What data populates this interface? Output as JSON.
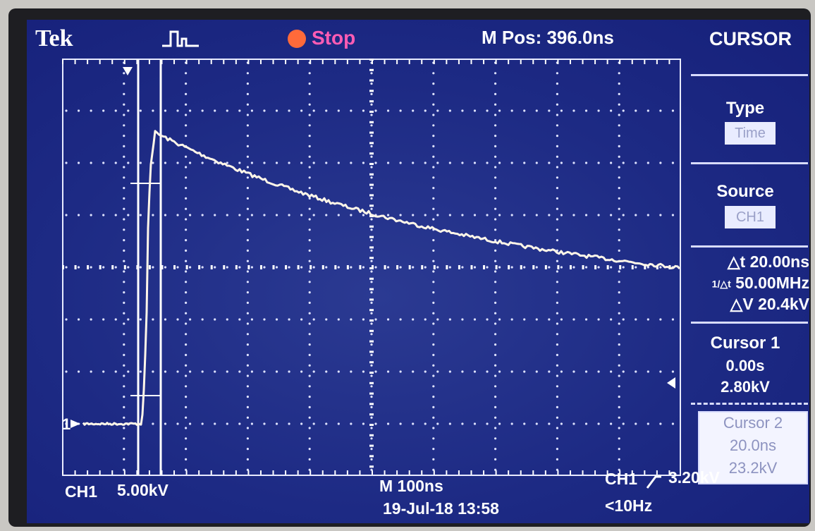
{
  "header": {
    "brand": "Tek",
    "run_state": "Stop",
    "mpos": "M Pos: 396.0ns",
    "menu_title": "CURSOR",
    "trigger_icon": "trigger-pulse-icon",
    "stop_color": "#ff6a3a"
  },
  "side_menu": {
    "type_label": "Type",
    "type_value": "Time",
    "source_label": "Source",
    "source_value": "CH1",
    "delta_t": "△t 20.00ns",
    "inv_delta_t": "50.00MHz",
    "delta_v": "△V 20.4kV",
    "cursor1_label": "Cursor 1",
    "cursor1_time": "0.00s",
    "cursor1_value": "2.80kV",
    "cursor2_label": "Cursor 2",
    "cursor2_time": "20.0ns",
    "cursor2_value": "23.2kV"
  },
  "footer": {
    "ch1_label": "CH1",
    "ch1_scale": "5.00kV",
    "timebase": "M 100ns",
    "datetime": "19-Jul-18 13:58",
    "trigger_source": "CH1",
    "trigger_level": "3.20kV",
    "trigger_freq": "<10Hz"
  },
  "display": {
    "channel_marker": "1",
    "trace_color": "#fff6e8",
    "background_color": "#1d2a84",
    "divisions_x": 10,
    "divisions_y": 8
  }
}
